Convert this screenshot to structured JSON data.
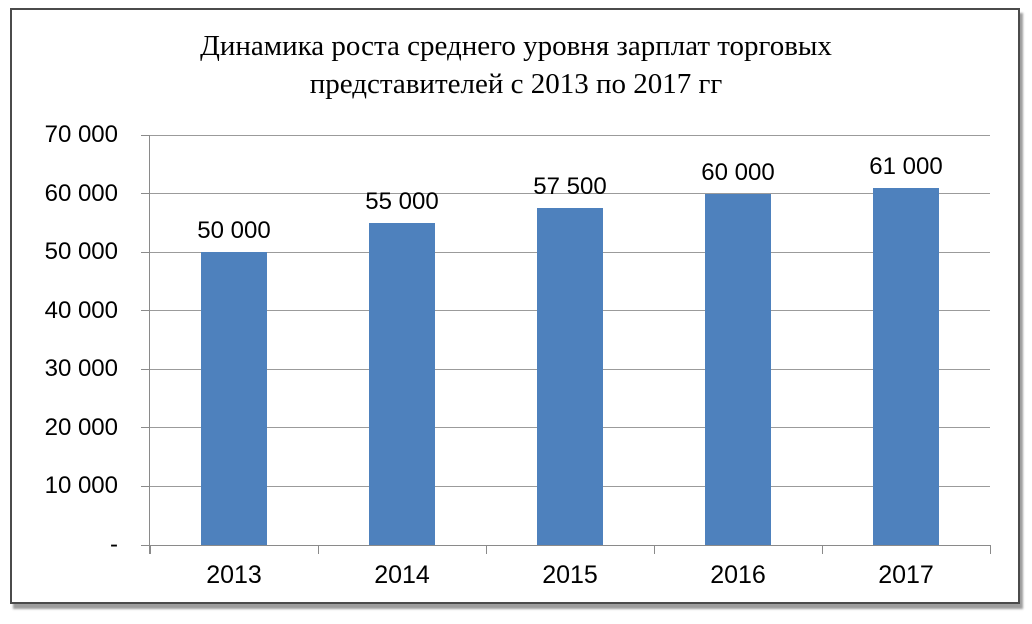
{
  "chart_data": {
    "type": "bar",
    "title": "Динамика роста среднего уровня зарплат торговых представителей с 2013 по 2017 гг",
    "title_lines": [
      "Динамика роста среднего уровня зарплат торговых",
      "представителей с 2013 по 2017 гг"
    ],
    "categories": [
      "2013",
      "2014",
      "2015",
      "2016",
      "2017"
    ],
    "values": [
      50000,
      55000,
      57500,
      60000,
      61000
    ],
    "data_labels": [
      "50 000",
      "55 000",
      "57 500",
      "60 000",
      "61 000"
    ],
    "y_ticks": [
      70000,
      60000,
      50000,
      40000,
      30000,
      20000,
      10000,
      0
    ],
    "y_tick_labels": [
      "70 000",
      "60 000",
      "50 000",
      "40 000",
      "30 000",
      "20 000",
      "10 000",
      "-"
    ],
    "ylim": [
      0,
      70000
    ],
    "xlabel": "",
    "ylabel": "",
    "grid": true,
    "legend": "none",
    "colors": {
      "bar": "#4e81bd",
      "gridline": "#9b9b9b",
      "axis": "#8a8a8a",
      "text": "#000000",
      "frame_border": "#4b4b4b",
      "frame_shadow": "#9d9d9d",
      "background": "#ffffff"
    }
  }
}
